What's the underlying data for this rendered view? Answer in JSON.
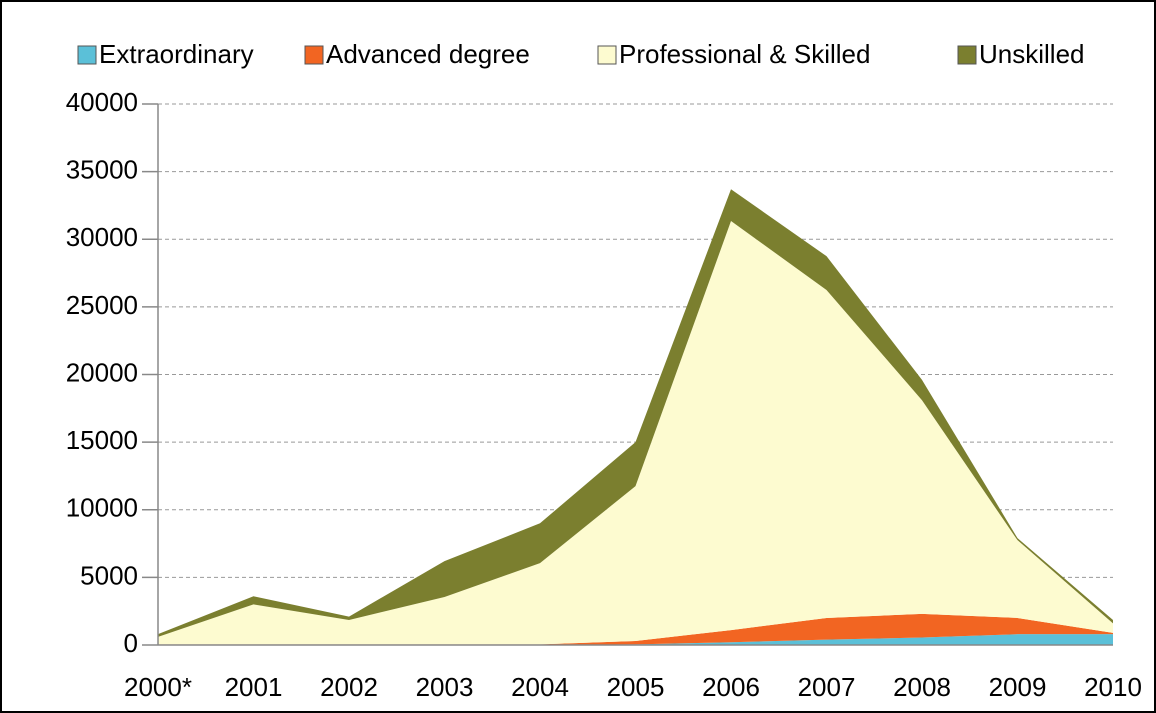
{
  "chart_data": {
    "type": "stacked_area",
    "categories": [
      "2000*",
      "2001",
      "2002",
      "2003",
      "2004",
      "2005",
      "2006",
      "2007",
      "2008",
      "2009",
      "2010"
    ],
    "series": [
      {
        "name": "Extraordinary",
        "color": "#5bc0d8",
        "values": [
          10,
          10,
          10,
          10,
          10,
          50,
          200,
          400,
          550,
          800,
          800
        ]
      },
      {
        "name": "Advanced degree",
        "color": "#f26522",
        "values": [
          40,
          40,
          40,
          40,
          40,
          250,
          900,
          1600,
          1750,
          1200,
          100
        ]
      },
      {
        "name": "Professional & Skilled",
        "color": "#fdfbd0",
        "values": [
          550,
          2950,
          1800,
          3500,
          6000,
          11450,
          30250,
          24250,
          15800,
          5750,
          700
        ]
      },
      {
        "name": "Unskilled",
        "color": "#7b7f2f",
        "values": [
          200,
          600,
          250,
          2650,
          2950,
          3250,
          2350,
          2500,
          1500,
          150,
          250
        ]
      }
    ],
    "ylim": [
      0,
      40000
    ],
    "yticks": [
      0,
      5000,
      10000,
      15000,
      20000,
      25000,
      30000,
      35000,
      40000
    ],
    "grid": true,
    "legend": "top"
  }
}
